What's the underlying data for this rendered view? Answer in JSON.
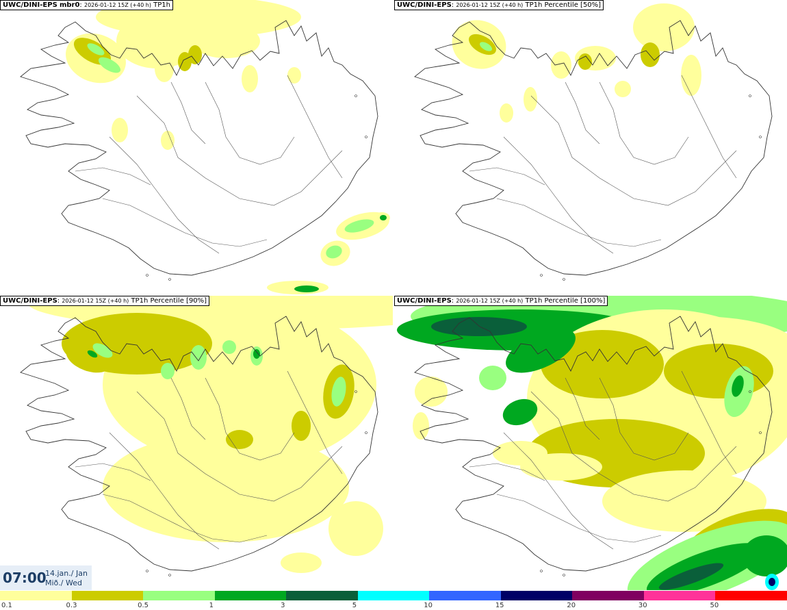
{
  "panels": [
    {
      "model": "UWC/DINI-EPS",
      "member": "mbr0",
      "meta": "2026-01-12 15Z (+40 h)",
      "field": "TP1h",
      "percentile": ""
    },
    {
      "model": "UWC/DINI-EPS",
      "member": "",
      "meta": "2026-01-12 15Z (+40 h)",
      "field": "TP1h Percentile",
      "percentile": "[50%]"
    },
    {
      "model": "UWC/DINI-EPS",
      "member": "",
      "meta": "2026-01-12 15Z (+40 h)",
      "field": "TP1h Percentile",
      "percentile": "[90%]"
    },
    {
      "model": "UWC/DINI-EPS",
      "member": "",
      "meta": "2026-01-12 15Z (+40 h)",
      "field": "TP1h Percentile",
      "percentile": "[100%]"
    }
  ],
  "time": {
    "clock": "07:00",
    "date": "14.jan./ Jan",
    "weekday": "Mið./ Wed"
  },
  "legend": {
    "ticks": [
      "0.1",
      "0.3",
      "0.5",
      "1",
      "3",
      "5",
      "10",
      "15",
      "20",
      "30",
      "50"
    ],
    "colors": [
      "#ffff9c",
      "#cccc00",
      "#99ff80",
      "#00a820",
      "#0a5f3a",
      "#00ffff",
      "#3366ff",
      "#000066",
      "#800060",
      "#ff3399",
      "#ff0000"
    ]
  },
  "colors": {
    "light_yellow": "#ffff9c",
    "olive": "#cccc00",
    "light_green": "#99ff80",
    "green": "#00a820",
    "dark_green": "#0a5f3a",
    "cyan": "#00ffff",
    "navy": "#000066",
    "red": "#ff0000"
  }
}
